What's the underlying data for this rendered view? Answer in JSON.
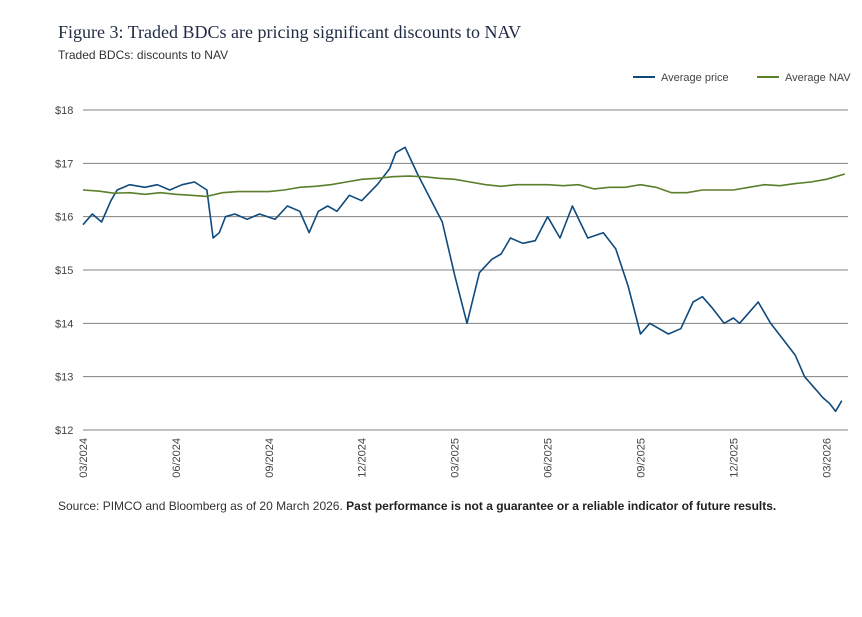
{
  "title": "Figure 3: Traded BDCs are pricing significant discounts to NAV",
  "subtitle": "Traded BDCs: discounts to NAV",
  "source_text": "Source: PIMCO and Bloomberg as of 20 March 2026. ",
  "source_bold": "Past performance is not a guarantee or a reliable indicator of future results.",
  "colors": {
    "price": "#0f4a7c",
    "nav": "#5b7f2b",
    "grid": "#808080",
    "axis_text": "#444444"
  },
  "chart_data": {
    "type": "line",
    "title": "Traded BDCs: discounts to NAV",
    "xlabel": "",
    "ylabel": "",
    "ylim": [
      12,
      18
    ],
    "xlim": [
      0,
      24.7
    ],
    "yticks": [
      12,
      13,
      14,
      15,
      16,
      17,
      18
    ],
    "ytick_labels": [
      "$12",
      "$13",
      "$14",
      "$15",
      "$16",
      "$17",
      "$18"
    ],
    "xtick_positions": [
      0,
      3,
      6,
      9,
      12,
      15,
      18,
      21,
      24
    ],
    "xtick_labels": [
      "03/2024",
      "06/2024",
      "09/2024",
      "12/2024",
      "03/2025",
      "06/2025",
      "09/2025",
      "12/2025",
      "03/2026"
    ],
    "legend_position": "top-right",
    "x_unit": "months since March 2024",
    "series": [
      {
        "name": "Average price",
        "x": [
          0,
          0.3,
          0.6,
          0.9,
          1.1,
          1.5,
          2.0,
          2.4,
          2.8,
          3.2,
          3.6,
          4.0,
          4.2,
          4.4,
          4.6,
          4.9,
          5.3,
          5.7,
          6.2,
          6.6,
          7.0,
          7.3,
          7.6,
          7.9,
          8.2,
          8.6,
          9.0,
          9.5,
          9.9,
          10.1,
          10.4,
          10.8,
          11.2,
          11.6,
          12.0,
          12.4,
          12.8,
          13.2,
          13.5,
          13.8,
          14.2,
          14.6,
          15.0,
          15.4,
          15.8,
          16.3,
          16.8,
          17.2,
          17.6,
          18.0,
          18.3,
          18.6,
          18.9,
          19.3,
          19.7,
          20.0,
          20.3,
          20.7,
          21.0,
          21.2,
          21.5,
          21.8,
          22.2,
          22.6,
          23.0,
          23.3,
          23.6,
          23.9,
          24.1,
          24.3,
          24.5
        ],
        "values": [
          15.85,
          16.05,
          15.9,
          16.3,
          16.5,
          16.6,
          16.55,
          16.6,
          16.5,
          16.6,
          16.65,
          16.5,
          15.6,
          15.7,
          16.0,
          16.05,
          15.95,
          16.05,
          15.95,
          16.2,
          16.1,
          15.7,
          16.1,
          16.2,
          16.1,
          16.4,
          16.3,
          16.6,
          16.9,
          17.2,
          17.3,
          16.8,
          16.35,
          15.9,
          14.9,
          14.0,
          14.95,
          15.2,
          15.3,
          15.6,
          15.5,
          15.55,
          16.0,
          15.6,
          16.2,
          15.6,
          15.7,
          15.4,
          14.7,
          13.8,
          14.0,
          13.9,
          13.8,
          13.9,
          14.4,
          14.5,
          14.3,
          14.0,
          14.1,
          14.0,
          14.2,
          14.4,
          14.0,
          13.7,
          13.4,
          13.0,
          12.8,
          12.6,
          12.5,
          12.35,
          12.55
        ]
      },
      {
        "name": "Average NAV",
        "x": [
          0,
          0.5,
          1.0,
          1.5,
          2.0,
          2.5,
          3.0,
          3.5,
          4.0,
          4.5,
          5.0,
          5.5,
          6.0,
          6.5,
          7.0,
          7.5,
          8.0,
          8.5,
          9.0,
          9.5,
          10.0,
          10.5,
          11.0,
          11.5,
          12.0,
          12.5,
          13.0,
          13.5,
          14.0,
          14.5,
          15.0,
          15.5,
          16.0,
          16.5,
          17.0,
          17.5,
          18.0,
          18.5,
          19.0,
          19.5,
          20.0,
          20.5,
          21.0,
          21.5,
          22.0,
          22.5,
          23.0,
          23.5,
          24.0,
          24.3,
          24.6
        ],
        "values": [
          16.5,
          16.48,
          16.44,
          16.45,
          16.42,
          16.45,
          16.42,
          16.4,
          16.38,
          16.45,
          16.47,
          16.47,
          16.47,
          16.5,
          16.55,
          16.57,
          16.6,
          16.65,
          16.7,
          16.72,
          16.75,
          16.76,
          16.75,
          16.72,
          16.7,
          16.65,
          16.6,
          16.57,
          16.6,
          16.6,
          16.6,
          16.58,
          16.6,
          16.52,
          16.55,
          16.55,
          16.6,
          16.55,
          16.45,
          16.45,
          16.5,
          16.5,
          16.5,
          16.55,
          16.6,
          16.58,
          16.62,
          16.65,
          16.7,
          16.75,
          16.8
        ]
      }
    ]
  }
}
